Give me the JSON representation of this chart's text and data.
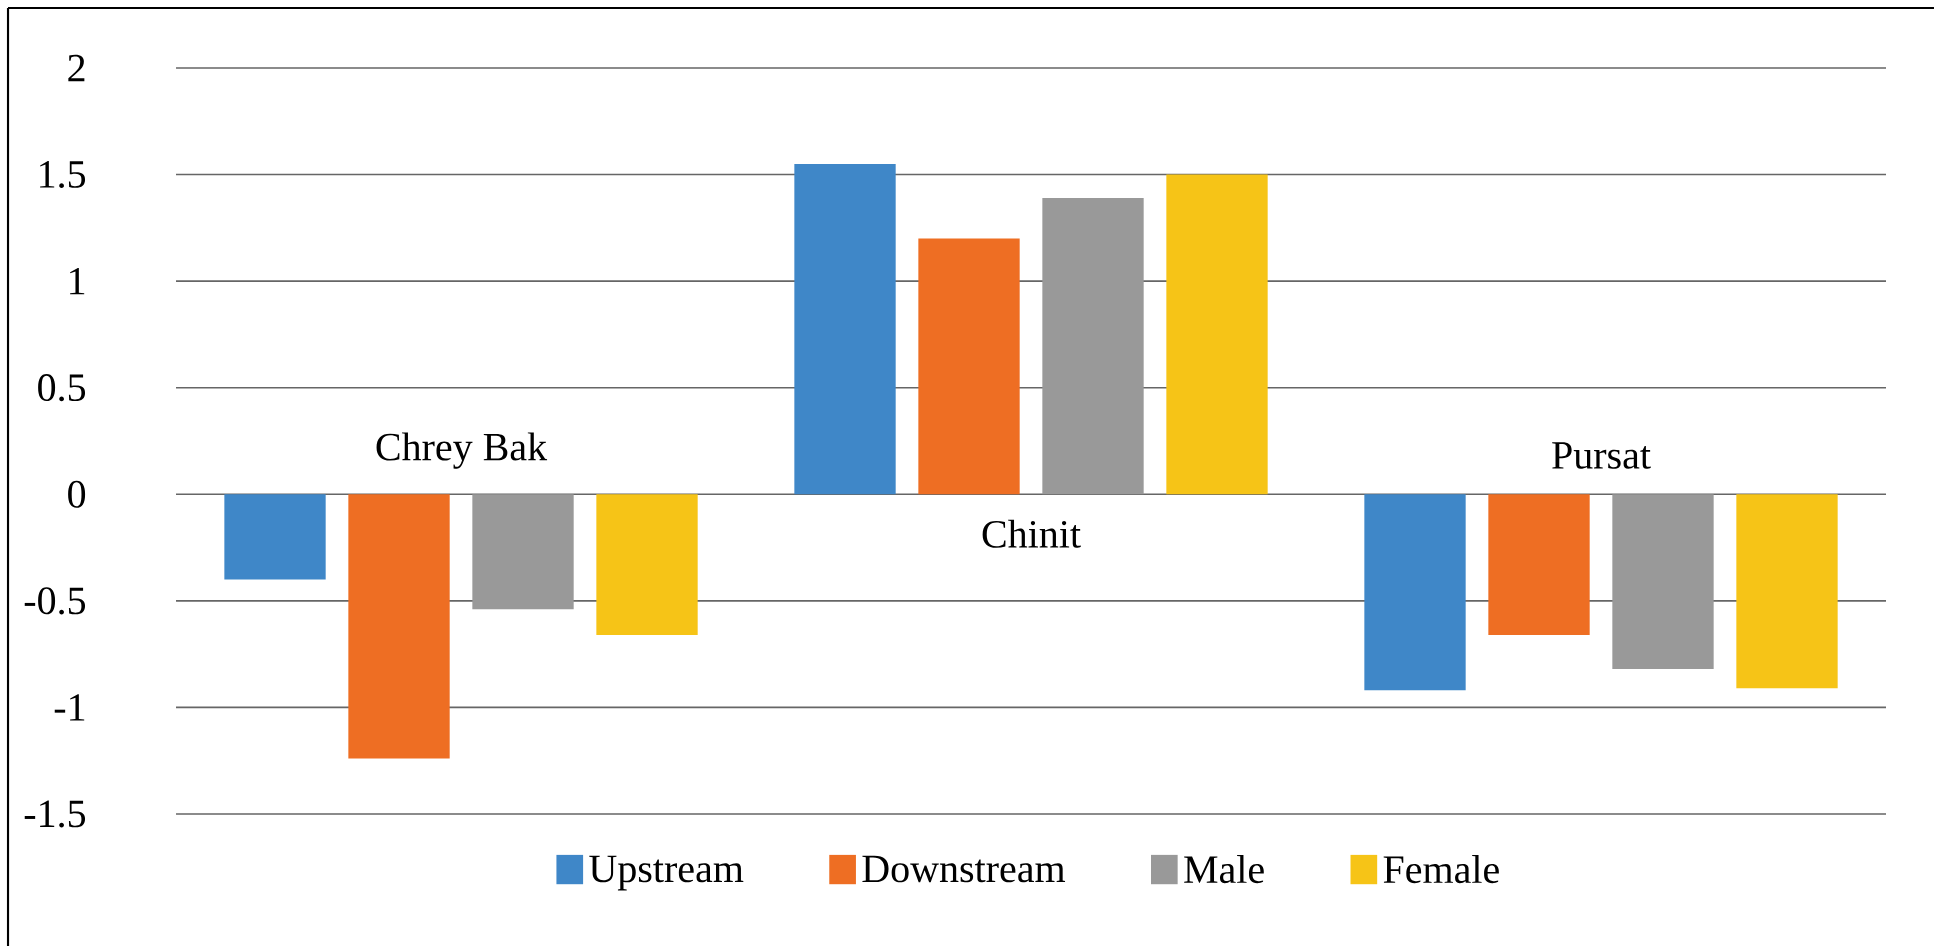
{
  "chart_data": {
    "type": "bar",
    "categories": [
      "Chrey Bak",
      "Chinit",
      "Pursat"
    ],
    "series": [
      {
        "name": "Upstream",
        "color": "#3f87c8",
        "values": [
          -0.4,
          1.55,
          -0.92
        ]
      },
      {
        "name": "Downstream",
        "color": "#ee6e23",
        "values": [
          -1.24,
          1.2,
          -0.66
        ]
      },
      {
        "name": "Male",
        "color": "#999999",
        "values": [
          -0.54,
          1.39,
          -0.82
        ]
      },
      {
        "name": "Female",
        "color": "#f6c417",
        "values": [
          -0.66,
          1.5,
          -0.91
        ]
      }
    ],
    "ylim": [
      -1.5,
      2
    ],
    "yticks": [
      -1.5,
      -1,
      -0.5,
      0,
      0.5,
      1,
      1.5,
      2
    ],
    "grid": "y",
    "legend": "bottom"
  }
}
